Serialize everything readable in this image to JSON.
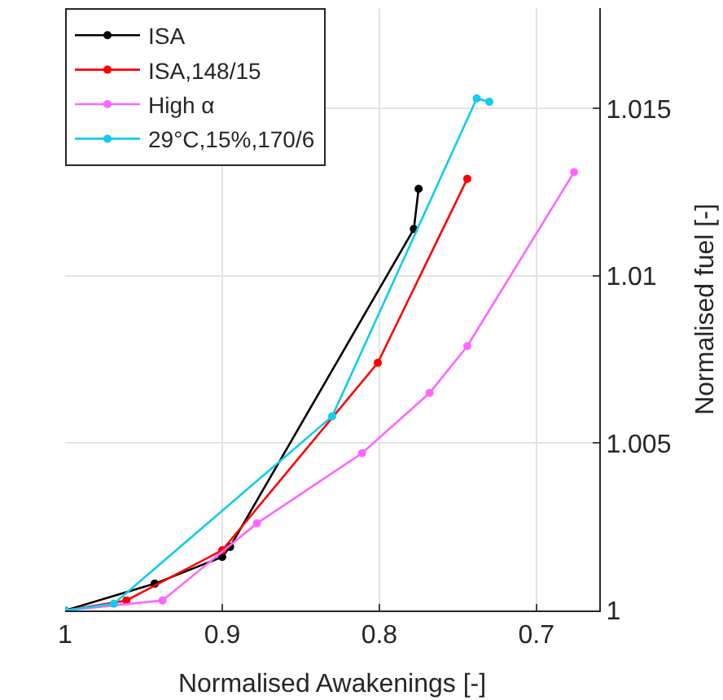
{
  "chart_data": {
    "type": "line",
    "xlabel": "Normalised Awakenings [-]",
    "ylabel": "Normalised fuel [-]",
    "xlim": [
      1,
      0.66
    ],
    "xticks": [
      1,
      0.9,
      0.8,
      0.7
    ],
    "ylim": [
      1,
      1.018
    ],
    "yticks": [
      1,
      1.005,
      1.01,
      1.015
    ],
    "grid": true,
    "legend": "top left",
    "marker": "circle",
    "line_style": "solid",
    "series": [
      {
        "name": "ISA",
        "color": "#000000",
        "x": [
          1,
          0.943,
          0.9,
          0.895,
          0.778,
          0.775
        ],
        "values": [
          1,
          1.0008,
          1.0016,
          1.0019,
          1.0114,
          1.0126
        ]
      },
      {
        "name": "ISA,148/15",
        "color": "#ff0000",
        "x": [
          1,
          0.961,
          0.9,
          0.801,
          0.744
        ],
        "values": [
          1,
          1.0003,
          1.0018,
          1.0074,
          1.0129
        ]
      },
      {
        "name": "High α",
        "color": "#ff66ff",
        "x": [
          1,
          0.938,
          0.878,
          0.811,
          0.768,
          0.744,
          0.676
        ],
        "values": [
          1,
          1.0003,
          1.0026,
          1.0047,
          1.0065,
          1.0079,
          1.0131
        ]
      },
      {
        "name": "29°C,15%,170/6",
        "color": "#11ccee",
        "x": [
          1,
          0.969,
          0.83,
          0.738,
          0.73
        ],
        "values": [
          1,
          1.0002,
          1.0058,
          1.0153,
          1.0152
        ]
      }
    ]
  }
}
